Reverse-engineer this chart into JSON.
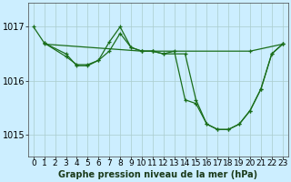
{
  "background_color": "#cceeff",
  "grid_color": "#aacccc",
  "line_color": "#1a6e1a",
  "title": "Graphe pression niveau de la mer (hPa)",
  "xlabel_fontsize": 6.5,
  "ylabel_fontsize": 7,
  "title_fontsize": 7,
  "xlim": [
    -0.5,
    23.5
  ],
  "ylim": [
    1014.6,
    1017.45
  ],
  "yticks": [
    1015,
    1016,
    1017
  ],
  "xtick_labels": [
    "0",
    "1",
    "2",
    "3",
    "4",
    "5",
    "6",
    "7",
    "8",
    "9",
    "10",
    "11",
    "12",
    "13",
    "14",
    "15",
    "16",
    "17",
    "18",
    "19",
    "20",
    "21",
    "22",
    "23"
  ],
  "line1_x": [
    0,
    1,
    2,
    3,
    4,
    5,
    6,
    7,
    8,
    9,
    10,
    11,
    12,
    13,
    14,
    15,
    16,
    17,
    18,
    19,
    20,
    21,
    22,
    23
  ],
  "line1_y": [
    1017.0,
    1016.7,
    1016.55,
    1016.45,
    1016.3,
    1016.3,
    1016.38,
    1016.72,
    1017.0,
    1016.65,
    1016.55,
    1016.55,
    1016.5,
    1016.55,
    1015.65,
    1015.6,
    1015.2,
    1015.1,
    1015.1,
    1015.2,
    1015.45,
    1015.85,
    1016.5,
    1016.68
  ],
  "line2_x": [
    1,
    2,
    3,
    4,
    5,
    6,
    7,
    8,
    9,
    10,
    11,
    12,
    14,
    15,
    16,
    17,
    18,
    19,
    20,
    21,
    22,
    23
  ],
  "line2_y": [
    1016.7,
    1016.55,
    1016.45,
    1016.3,
    1016.3,
    1016.38,
    1016.6,
    1016.9,
    1016.6,
    1016.55,
    1016.55,
    1016.5,
    1016.5,
    1015.65,
    1015.2,
    1015.1,
    1015.1,
    1015.2,
    1015.45,
    1015.85,
    1016.5,
    1016.68
  ],
  "line3_x": [
    0,
    10,
    11,
    12,
    13,
    14,
    15,
    16,
    17,
    18,
    19,
    20,
    21,
    22,
    23
  ],
  "line3_y": [
    1016.68,
    1016.55,
    1016.55,
    1016.5,
    1016.55,
    1016.5,
    1015.65,
    1015.2,
    1015.1,
    1015.1,
    1015.2,
    1015.45,
    1015.85,
    1016.5,
    1016.68
  ]
}
